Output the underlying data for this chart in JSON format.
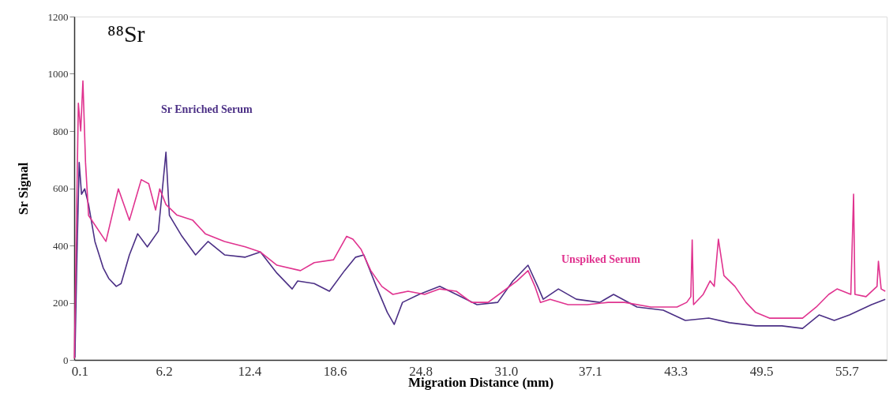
{
  "chart_data": {
    "type": "line",
    "title": "⁸⁸Sr",
    "xlabel": "Migration Distance (mm)",
    "ylabel": "Sr Signal",
    "xlim": [
      -0.3,
      58.6
    ],
    "ylim": [
      0,
      1200
    ],
    "xticks": [
      0.1,
      6.2,
      12.4,
      18.6,
      24.8,
      {
        "value": 31,
        "label": "31.0"
      },
      37.1,
      43.3,
      49.5,
      55.7
    ],
    "yticks": [
      0,
      200,
      400,
      600,
      800,
      1000,
      1200
    ],
    "grid": false,
    "legend": false,
    "marker": "none",
    "line_style": "solid",
    "series": [
      {
        "name": "Sr Enriched Serum",
        "color": "#4b2f85",
        "x": [
          -0.25,
          -0.1,
          0.06,
          0.23,
          0.46,
          0.74,
          1.2,
          1.8,
          2.2,
          2.75,
          3.1,
          3.7,
          4.3,
          5.0,
          5.8,
          6.35,
          6.6,
          7.5,
          8.5,
          9.4,
          10.6,
          12.1,
          13.2,
          14.4,
          15.5,
          15.9,
          17.1,
          18.2,
          19.3,
          20.1,
          20.7,
          21.6,
          22.4,
          22.9,
          23.5,
          24.7,
          26.2,
          27.4,
          28.9,
          30.4,
          31.5,
          32.6,
          33.3,
          33.7,
          34.8,
          36.1,
          37.8,
          38.8,
          40.5,
          42.4,
          44.0,
          45.7,
          47.2,
          49.1,
          51.0,
          52.5,
          53.7,
          54.8,
          55.9,
          57.5,
          58.5
        ],
        "values": [
          8,
          367,
          690,
          579,
          598,
          543,
          414,
          322,
          285,
          257,
          267,
          367,
          441,
          395,
          450,
          726,
          505,
          433,
          367,
          414,
          367,
          359,
          377,
          303,
          248,
          276,
          267,
          240,
          312,
          359,
          367,
          257,
          166,
          124,
          201,
          229,
          257,
          229,
          193,
          201,
          276,
          331,
          257,
          212,
          248,
          212,
          201,
          229,
          185,
          174,
          138,
          146,
          130,
          119,
          119,
          110,
          157,
          138,
          157,
          193,
          212
        ]
      },
      {
        "name": "Unspiked Serum",
        "color": "#e0338f",
        "x": [
          -0.29,
          0.0,
          0.17,
          0.33,
          0.52,
          0.74,
          2.0,
          2.9,
          3.7,
          4.56,
          5.1,
          5.6,
          5.9,
          6.35,
          7.15,
          8.3,
          9.2,
          10.6,
          12.1,
          13.2,
          14.4,
          16.1,
          17.1,
          18.5,
          19.45,
          19.9,
          20.5,
          21.2,
          22.0,
          22.8,
          23.9,
          25.1,
          26.2,
          27.4,
          28.5,
          29.7,
          30.8,
          31.8,
          32.6,
          33.1,
          33.5,
          34.2,
          35.5,
          36.9,
          38.4,
          39.6,
          41.5,
          43.4,
          44.1,
          44.4,
          44.5,
          44.6,
          45.3,
          45.8,
          46.1,
          46.4,
          46.8,
          47.6,
          48.4,
          49.1,
          50.1,
          51.4,
          52.5,
          53.5,
          54.4,
          55.0,
          56.0,
          56.2,
          56.3,
          57.1,
          57.9,
          58.0,
          58.2,
          58.5
        ],
        "values": [
          5,
          897,
          800,
          975,
          690,
          505,
          414,
          598,
          488,
          630,
          616,
          524,
          598,
          543,
          506,
          488,
          441,
          414,
          395,
          377,
          331,
          312,
          340,
          350,
          432,
          422,
          386,
          312,
          257,
          229,
          240,
          229,
          248,
          240,
          201,
          201,
          240,
          276,
          312,
          257,
          201,
          212,
          193,
          193,
          201,
          201,
          185,
          185,
          201,
          221,
          419,
          193,
          229,
          276,
          257,
          422,
          295,
          257,
          201,
          166,
          146,
          146,
          146,
          185,
          229,
          248,
          229,
          579,
          229,
          221,
          257,
          345,
          248,
          240
        ]
      }
    ]
  }
}
